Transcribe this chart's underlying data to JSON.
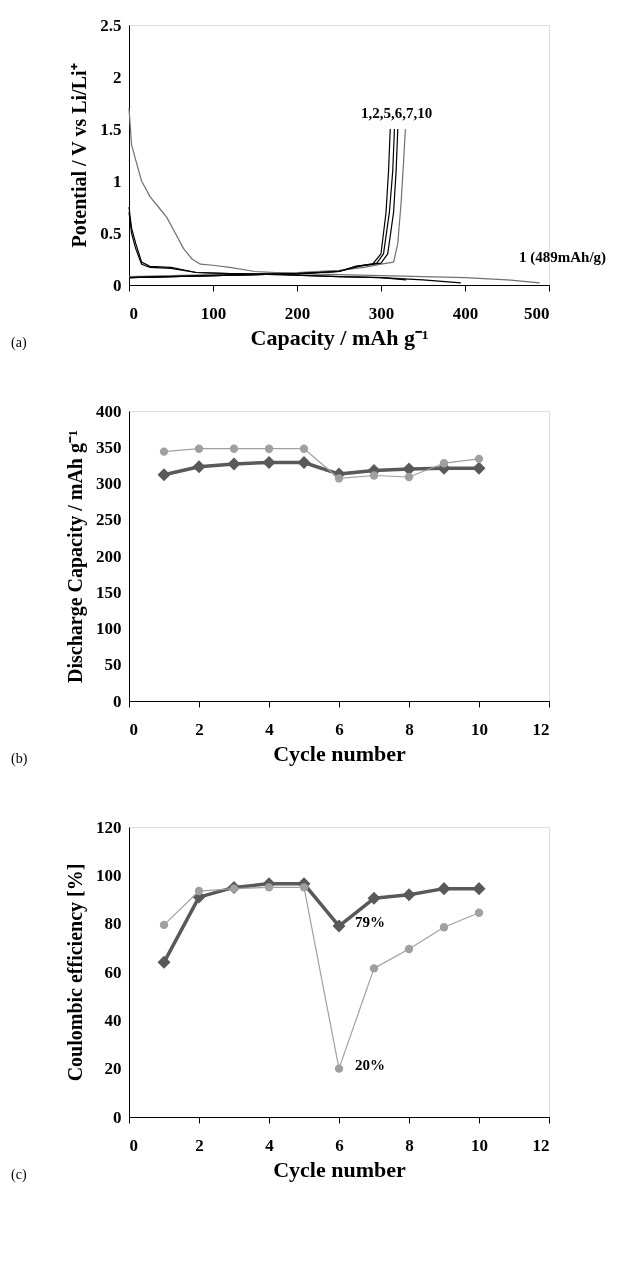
{
  "chart_data": [
    {
      "type": "line",
      "xlabel": "Capacity  /  mAh g⁻¹",
      "ylabel": "Potential  /  V vs Li/Li⁺",
      "xlim": [
        0,
        500
      ],
      "ylim": [
        0,
        2.5
      ],
      "xticks": [
        0,
        100,
        200,
        300,
        400,
        500
      ],
      "yticks": [
        0,
        0.5,
        1,
        1.5,
        2,
        2.5
      ],
      "grid": false,
      "marker": "none",
      "annotations": [
        "1,2,5,6,7,10",
        "1 (489mAh/g)",
        "(a)"
      ],
      "series": [
        {
          "color": "#707070",
          "x": [
            0,
            3,
            8,
            15,
            25,
            35,
            45,
            55,
            65,
            75,
            85,
            100,
            120,
            150,
            200,
            250,
            300,
            350,
            400,
            450,
            489
          ],
          "values": [
            1.7,
            1.35,
            1.2,
            1.0,
            0.85,
            0.75,
            0.65,
            0.5,
            0.35,
            0.25,
            0.2,
            0.19,
            0.17,
            0.13,
            0.11,
            0.1,
            0.09,
            0.08,
            0.07,
            0.05,
            0.02
          ]
        },
        {
          "color": "#707070",
          "x": [
            0,
            50,
            100,
            150,
            200,
            250,
            280,
            300,
            315,
            320,
            324,
            327,
            329
          ],
          "values": [
            0.08,
            0.09,
            0.1,
            0.11,
            0.12,
            0.14,
            0.17,
            0.2,
            0.22,
            0.4,
            0.8,
            1.2,
            1.5
          ]
        },
        {
          "color": "#000000",
          "x": [
            0,
            3,
            8,
            15,
            25,
            50,
            80,
            120,
            180,
            250,
            300,
            350,
            395
          ],
          "values": [
            0.75,
            0.55,
            0.4,
            0.22,
            0.18,
            0.17,
            0.12,
            0.11,
            0.1,
            0.08,
            0.07,
            0.05,
            0.02
          ]
        },
        {
          "color": "#000000",
          "x": [
            0,
            3,
            8,
            15,
            25,
            50,
            80,
            120,
            180,
            250,
            300,
            330
          ],
          "values": [
            0.7,
            0.5,
            0.35,
            0.2,
            0.17,
            0.16,
            0.12,
            0.11,
            0.1,
            0.08,
            0.07,
            0.05
          ]
        },
        {
          "color": "#000000",
          "x": [
            0,
            50,
            100,
            150,
            200,
            250,
            270,
            290,
            300,
            306,
            309,
            311
          ],
          "values": [
            0.07,
            0.08,
            0.09,
            0.1,
            0.11,
            0.13,
            0.18,
            0.2,
            0.3,
            0.7,
            1.1,
            1.5
          ]
        },
        {
          "color": "#000000",
          "x": [
            0,
            50,
            100,
            150,
            200,
            250,
            270,
            295,
            303,
            310,
            314,
            316
          ],
          "values": [
            0.07,
            0.08,
            0.09,
            0.1,
            0.11,
            0.13,
            0.18,
            0.21,
            0.3,
            0.7,
            1.1,
            1.5
          ]
        },
        {
          "color": "#000000",
          "x": [
            0,
            50,
            100,
            150,
            200,
            250,
            275,
            300,
            308,
            315,
            318,
            320
          ],
          "values": [
            0.07,
            0.08,
            0.09,
            0.1,
            0.11,
            0.13,
            0.18,
            0.21,
            0.3,
            0.7,
            1.1,
            1.5
          ]
        }
      ]
    },
    {
      "type": "line",
      "xlabel": "Cycle number",
      "ylabel": "Discharge Capacity  /  mAh g⁻¹",
      "xlim": [
        0,
        12
      ],
      "ylim": [
        0,
        400
      ],
      "xticks": [
        0,
        2,
        4,
        6,
        8,
        10,
        12
      ],
      "yticks": [
        0,
        50,
        100,
        150,
        200,
        250,
        300,
        350,
        400
      ],
      "grid": false,
      "x": [
        1,
        2,
        3,
        4,
        5,
        6,
        7,
        8,
        9,
        10
      ],
      "annotations": [
        "(b)"
      ],
      "series": [
        {
          "color": "#595959",
          "marker": "diamond",
          "values": [
            312,
            323,
            327,
            329,
            329,
            313,
            318,
            320,
            321,
            321
          ]
        },
        {
          "color": "#a0a0a0",
          "marker": "circle",
          "values": [
            344,
            348,
            348,
            348,
            348,
            307,
            311,
            309,
            328,
            334
          ]
        }
      ]
    },
    {
      "type": "line",
      "xlabel": "Cycle number",
      "ylabel": "Coulombic efficiency [%]",
      "xlim": [
        0,
        12
      ],
      "ylim": [
        0,
        120
      ],
      "xticks": [
        0,
        2,
        4,
        6,
        8,
        10,
        12
      ],
      "yticks": [
        0,
        20,
        40,
        60,
        80,
        100,
        120
      ],
      "grid": false,
      "x": [
        1,
        2,
        3,
        4,
        5,
        6,
        7,
        8,
        9,
        10
      ],
      "annotations": [
        {
          "text": "79%",
          "x": 6,
          "y": 79
        },
        {
          "text": "20%",
          "x": 6,
          "y": 20
        },
        "(c)"
      ],
      "series": [
        {
          "color": "#595959",
          "marker": "diamond",
          "values": [
            64,
            91,
            95,
            96.5,
            96.5,
            79,
            90.5,
            92,
            94.5,
            94.5
          ]
        },
        {
          "color": "#a0a0a0",
          "marker": "circle",
          "values": [
            79.5,
            93.5,
            94.5,
            95,
            95,
            20,
            61.5,
            69.5,
            78.5,
            84.5
          ]
        }
      ]
    }
  ]
}
